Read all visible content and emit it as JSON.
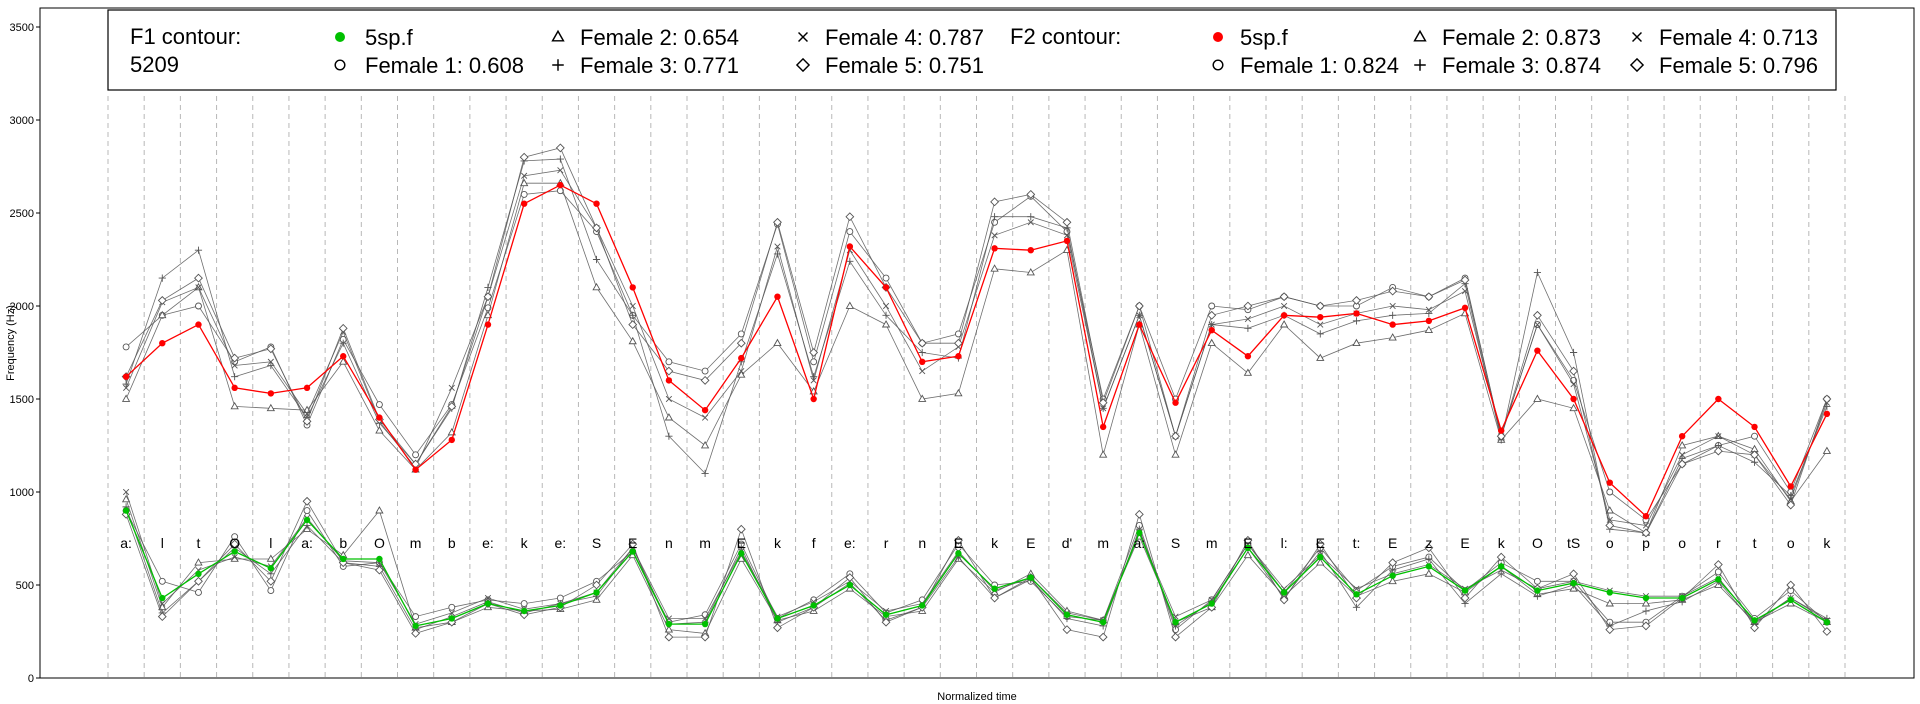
{
  "chart_data": {
    "type": "line",
    "title": "",
    "xlabel": "Normalized time",
    "ylabel": "Frequency (Hz)",
    "ylim": [
      0,
      3500
    ],
    "yticks": [
      0,
      500,
      1000,
      1500,
      2000,
      2500,
      3000,
      3500
    ],
    "grid": "vertical dashed segment boundaries",
    "legend_position": "top",
    "utterance_id": "5209",
    "segments": [
      "a:",
      "l",
      "t",
      "O",
      "l",
      "a:",
      "b",
      "O",
      "m",
      "b",
      "e:",
      "k",
      "e:",
      "S",
      "E",
      "n",
      "m",
      "E",
      "k",
      "f",
      "e:",
      "r",
      "n",
      "E",
      "k",
      "E",
      "d'",
      "m",
      "a:",
      "S",
      "m",
      "E",
      "l:",
      "E",
      "t:",
      "E",
      "z",
      "E",
      "k",
      "O",
      "tS",
      "o",
      "p",
      "o",
      "r",
      "t",
      "o",
      "k"
    ],
    "legends": [
      {
        "heading": "F1 contour:",
        "subheading": "5209",
        "items": [
          {
            "label": "5sp.f",
            "marker": "filled-circle",
            "color": "#00c000"
          },
          {
            "label": "Female 1: 0.608",
            "marker": "circle",
            "color": "#000000"
          },
          {
            "label": "Female 2: 0.654",
            "marker": "triangle",
            "color": "#000000"
          },
          {
            "label": "Female 3: 0.771",
            "marker": "plus",
            "color": "#000000"
          },
          {
            "label": "Female 4: 0.787",
            "marker": "cross",
            "color": "#000000"
          },
          {
            "label": "Female 5: 0.751",
            "marker": "diamond",
            "color": "#000000"
          }
        ]
      },
      {
        "heading": "F2 contour:",
        "subheading": "",
        "items": [
          {
            "label": "5sp.f",
            "marker": "filled-circle",
            "color": "#ff0000"
          },
          {
            "label": "Female 1: 0.824",
            "marker": "circle",
            "color": "#000000"
          },
          {
            "label": "Female 2: 0.873",
            "marker": "triangle",
            "color": "#000000"
          },
          {
            "label": "Female 3: 0.874",
            "marker": "plus",
            "color": "#000000"
          },
          {
            "label": "Female 4: 0.713",
            "marker": "cross",
            "color": "#000000"
          },
          {
            "label": "Female 5: 0.796",
            "marker": "diamond",
            "color": "#000000"
          }
        ]
      }
    ],
    "series": [
      {
        "name": "F1 contour 5sp.f",
        "formant": "F1",
        "speaker": "5sp.f",
        "color": "#00c000",
        "values": [
          900,
          430,
          560,
          680,
          590,
          850,
          640,
          640,
          280,
          320,
          400,
          360,
          390,
          460,
          680,
          290,
          290,
          670,
          320,
          390,
          500,
          340,
          390,
          670,
          480,
          540,
          340,
          300,
          780,
          300,
          400,
          700,
          460,
          650,
          450,
          550,
          600,
          470,
          600,
          470,
          510,
          460,
          430,
          430,
          530,
          310,
          420,
          300
        ]
      },
      {
        "name": "F1 contour Female 1",
        "formant": "F1",
        "speaker": "Female 1",
        "color": "#555555",
        "values": [
          900,
          520,
          460,
          760,
          470,
          900,
          600,
          620,
          330,
          380,
          420,
          400,
          430,
          520,
          680,
          300,
          340,
          720,
          320,
          420,
          560,
          350,
          420,
          720,
          500,
          520,
          330,
          310,
          820,
          260,
          420,
          720,
          460,
          700,
          470,
          600,
          650,
          470,
          620,
          520,
          520,
          300,
          300,
          440,
          570,
          320,
          470,
          300
        ]
      },
      {
        "name": "F1 contour Female 2",
        "formant": "F1",
        "speaker": "Female 2",
        "color": "#555555",
        "values": [
          960,
          380,
          620,
          640,
          640,
          800,
          660,
          900,
          270,
          300,
          380,
          360,
          370,
          420,
          660,
          260,
          240,
          640,
          310,
          360,
          480,
          330,
          360,
          640,
          460,
          560,
          360,
          310,
          760,
          300,
          380,
          660,
          440,
          620,
          440,
          520,
          560,
          460,
          600,
          450,
          480,
          400,
          400,
          420,
          500,
          300,
          400,
          300
        ]
      },
      {
        "name": "F1 contour Female 3",
        "formant": "F1",
        "speaker": "Female 3",
        "color": "#555555",
        "values": [
          920,
          350,
          520,
          700,
          560,
          820,
          620,
          600,
          260,
          330,
          410,
          350,
          400,
          440,
          700,
          290,
          300,
          700,
          300,
          380,
          510,
          310,
          380,
          650,
          430,
          530,
          320,
          280,
          800,
          280,
          410,
          700,
          430,
          680,
          380,
          580,
          640,
          400,
          560,
          440,
          500,
          280,
          360,
          410,
          520,
          290,
          430,
          320
        ]
      },
      {
        "name": "F1 contour Female 4",
        "formant": "F1",
        "speaker": "Female 4",
        "color": "#555555",
        "values": [
          1000,
          400,
          580,
          650,
          600,
          860,
          630,
          620,
          290,
          350,
          430,
          370,
          400,
          460,
          700,
          320,
          320,
          680,
          330,
          410,
          520,
          360,
          400,
          680,
          470,
          540,
          350,
          310,
          780,
          330,
          420,
          720,
          480,
          660,
          480,
          560,
          610,
          480,
          580,
          480,
          520,
          470,
          440,
          440,
          540,
          300,
          430,
          310
        ]
      },
      {
        "name": "F1 contour Female 5",
        "formant": "F1",
        "speaker": "Female 5",
        "color": "#555555",
        "values": [
          880,
          330,
          520,
          720,
          520,
          950,
          620,
          580,
          240,
          300,
          400,
          340,
          380,
          500,
          720,
          220,
          220,
          800,
          270,
          380,
          540,
          300,
          380,
          740,
          430,
          540,
          260,
          220,
          880,
          220,
          380,
          740,
          420,
          720,
          430,
          620,
          700,
          430,
          650,
          480,
          560,
          260,
          280,
          430,
          610,
          270,
          500,
          250
        ]
      },
      {
        "name": "F2 contour 5sp.f",
        "formant": "F2",
        "speaker": "5sp.f",
        "color": "#ff0000",
        "values": [
          1620,
          1800,
          1900,
          1560,
          1530,
          1560,
          1730,
          1400,
          1120,
          1280,
          1900,
          2550,
          2650,
          2550,
          2100,
          1600,
          1440,
          1720,
          2050,
          1500,
          2320,
          2100,
          1700,
          1730,
          2310,
          2300,
          2350,
          1350,
          1900,
          1480,
          1870,
          1730,
          1950,
          1940,
          1960,
          1900,
          1920,
          1990,
          1330,
          1760,
          1500,
          1050,
          870,
          1300,
          1500,
          1350,
          1030,
          1420
        ]
      },
      {
        "name": "F2 contour Female 1",
        "formant": "F2",
        "speaker": "Female 1",
        "color": "#555555",
        "values": [
          1780,
          1950,
          2000,
          1700,
          1780,
          1360,
          1820,
          1470,
          1200,
          1470,
          1990,
          2600,
          2620,
          2400,
          1950,
          1700,
          1650,
          1850,
          2440,
          1700,
          2400,
          2150,
          1800,
          1850,
          2450,
          2590,
          2400,
          1500,
          2000,
          1500,
          2000,
          1980,
          2050,
          2000,
          2000,
          2100,
          2050,
          2150,
          1300,
          1900,
          1600,
          1000,
          850,
          1150,
          1250,
          1300,
          1000,
          1500
        ]
      },
      {
        "name": "F2 contour Female 2",
        "formant": "F2",
        "speaker": "Female 2",
        "color": "#555555",
        "values": [
          1500,
          1950,
          2100,
          1460,
          1450,
          1440,
          1700,
          1330,
          1120,
          1320,
          1950,
          2660,
          2660,
          2100,
          1810,
          1400,
          1250,
          1630,
          1800,
          1540,
          2000,
          1900,
          1500,
          1530,
          2200,
          2180,
          2300,
          1200,
          1900,
          1200,
          1800,
          1640,
          1900,
          1720,
          1800,
          1830,
          1870,
          1960,
          1280,
          1500,
          1450,
          900,
          780,
          1250,
          1300,
          1230,
          950,
          1220
        ]
      },
      {
        "name": "F2 contour Female 3",
        "formant": "F2",
        "speaker": "Female 3",
        "color": "#555555",
        "values": [
          1580,
          2150,
          2300,
          1620,
          1680,
          1400,
          1800,
          1370,
          1150,
          1450,
          2100,
          2780,
          2790,
          2250,
          1950,
          1300,
          1100,
          1700,
          2280,
          1620,
          2240,
          1950,
          1750,
          1720,
          2480,
          2480,
          2420,
          1450,
          1950,
          1300,
          1900,
          1880,
          1950,
          1850,
          1920,
          1950,
          1960,
          2120,
          1280,
          2180,
          1750,
          800,
          780,
          1180,
          1250,
          1160,
          980,
          1460
        ]
      },
      {
        "name": "F2 contour Female 4",
        "formant": "F2",
        "speaker": "Female 4",
        "color": "#555555",
        "values": [
          1560,
          2020,
          2100,
          1680,
          1700,
          1420,
          1860,
          1380,
          1130,
          1560,
          2050,
          2700,
          2730,
          2420,
          2000,
          1500,
          1400,
          1650,
          2320,
          1600,
          2300,
          2000,
          1650,
          1780,
          2380,
          2450,
          2380,
          1450,
          1950,
          1300,
          1900,
          1930,
          2000,
          1900,
          1960,
          2000,
          1980,
          2080,
          1300,
          1900,
          1580,
          850,
          820,
          1200,
          1300,
          1200,
          960,
          1480
        ]
      },
      {
        "name": "F2 contour Female 5",
        "formant": "F2",
        "speaker": "Female 5",
        "color": "#555555",
        "values": [
          1620,
          2030,
          2150,
          1720,
          1770,
          1380,
          1880,
          1390,
          1150,
          1460,
          2050,
          2800,
          2850,
          2420,
          1900,
          1650,
          1600,
          1800,
          2450,
          1750,
          2480,
          2100,
          1800,
          1800,
          2560,
          2600,
          2450,
          1480,
          2000,
          1300,
          1950,
          2000,
          2050,
          2000,
          2030,
          2080,
          2050,
          2140,
          1300,
          1950,
          1650,
          820,
          780,
          1150,
          1220,
          1200,
          930,
          1500
        ]
      }
    ]
  }
}
